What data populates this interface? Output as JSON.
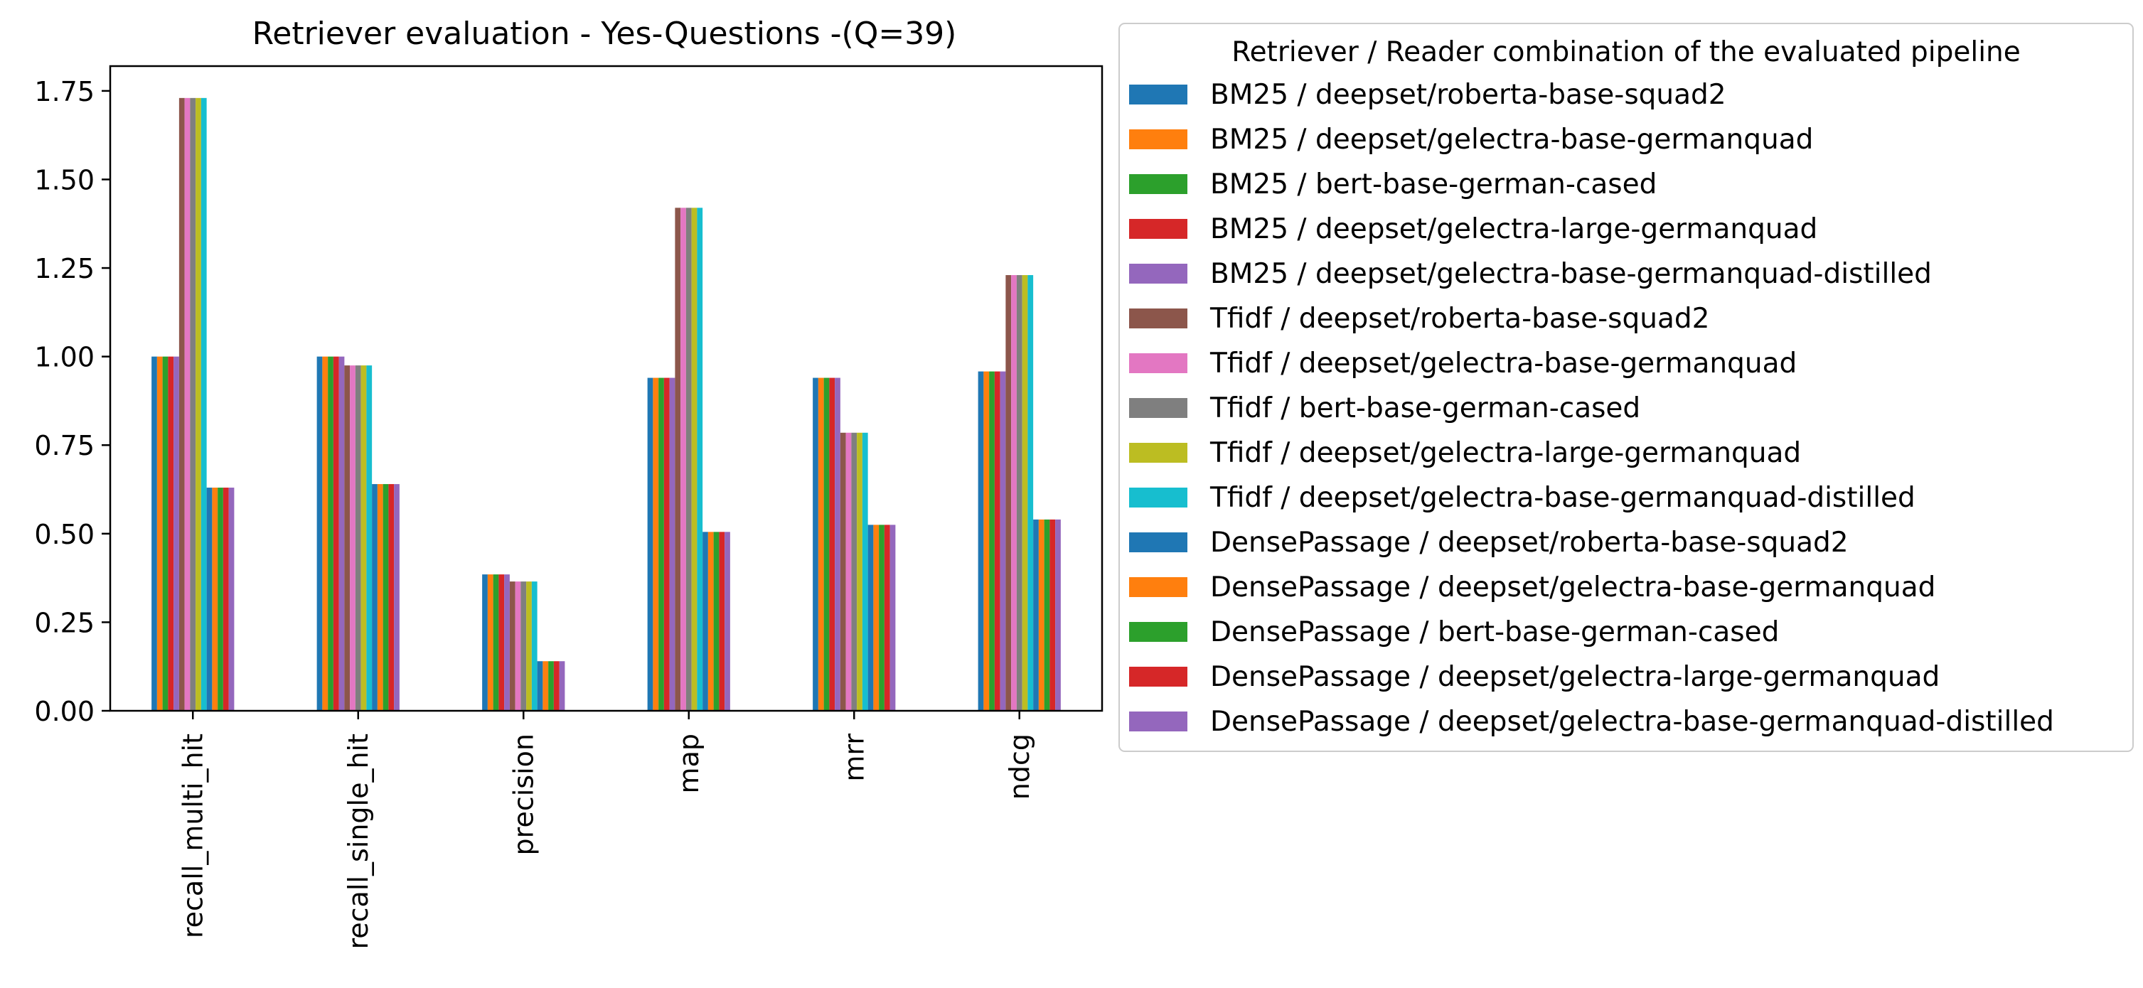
{
  "chart_data": {
    "type": "bar",
    "title": "Retriever evaluation - Yes-Questions -(Q=39)",
    "xlabel": "",
    "ylabel": "",
    "ylim": [
      0,
      1.82
    ],
    "yticks": [
      "0.00",
      "0.25",
      "0.50",
      "0.75",
      "1.00",
      "1.25",
      "1.50",
      "1.75"
    ],
    "ytick_values": [
      0,
      0.25,
      0.5,
      0.75,
      1.0,
      1.25,
      1.5,
      1.75
    ],
    "categories": [
      "recall_multi_hit",
      "recall_single_hit",
      "precision",
      "map",
      "mrr",
      "ndcg"
    ],
    "legend": {
      "title": "Retriever / Reader combination of the evaluated pipeline",
      "placement": "outside-right"
    },
    "series": [
      {
        "name": "BM25 / deepset/roberta-base-squad2",
        "color": "#1f77b4",
        "values": [
          1.0,
          1.0,
          0.385,
          0.94,
          0.94,
          0.958
        ]
      },
      {
        "name": "BM25 / deepset/gelectra-base-germanquad",
        "color": "#ff7f0e",
        "values": [
          1.0,
          1.0,
          0.385,
          0.94,
          0.94,
          0.958
        ]
      },
      {
        "name": "BM25 / bert-base-german-cased",
        "color": "#2ca02c",
        "values": [
          1.0,
          1.0,
          0.385,
          0.94,
          0.94,
          0.958
        ]
      },
      {
        "name": "BM25 / deepset/gelectra-large-germanquad",
        "color": "#d62728",
        "values": [
          1.0,
          1.0,
          0.385,
          0.94,
          0.94,
          0.958
        ]
      },
      {
        "name": "BM25 / deepset/gelectra-base-germanquad-distilled",
        "color": "#9467bd",
        "values": [
          1.0,
          1.0,
          0.385,
          0.94,
          0.94,
          0.958
        ]
      },
      {
        "name": "Tfidf / deepset/roberta-base-squad2",
        "color": "#8c564b",
        "values": [
          1.73,
          0.975,
          0.365,
          1.42,
          0.785,
          1.23
        ]
      },
      {
        "name": "Tfidf / deepset/gelectra-base-germanquad",
        "color": "#e377c2",
        "values": [
          1.73,
          0.975,
          0.365,
          1.42,
          0.785,
          1.23
        ]
      },
      {
        "name": "Tfidf / bert-base-german-cased",
        "color": "#7f7f7f",
        "values": [
          1.73,
          0.975,
          0.365,
          1.42,
          0.785,
          1.23
        ]
      },
      {
        "name": "Tfidf / deepset/gelectra-large-germanquad",
        "color": "#bcbd22",
        "values": [
          1.73,
          0.975,
          0.365,
          1.42,
          0.785,
          1.23
        ]
      },
      {
        "name": "Tfidf / deepset/gelectra-base-germanquad-distilled",
        "color": "#17becf",
        "values": [
          1.73,
          0.975,
          0.365,
          1.42,
          0.785,
          1.23
        ]
      },
      {
        "name": "DensePassage / deepset/roberta-base-squad2",
        "color": "#1f77b4",
        "values": [
          0.63,
          0.64,
          0.14,
          0.505,
          0.525,
          0.54
        ]
      },
      {
        "name": "DensePassage / deepset/gelectra-base-germanquad",
        "color": "#ff7f0e",
        "values": [
          0.63,
          0.64,
          0.14,
          0.505,
          0.525,
          0.54
        ]
      },
      {
        "name": "DensePassage / bert-base-german-cased",
        "color": "#2ca02c",
        "values": [
          0.63,
          0.64,
          0.14,
          0.505,
          0.525,
          0.54
        ]
      },
      {
        "name": "DensePassage / deepset/gelectra-large-germanquad",
        "color": "#d62728",
        "values": [
          0.63,
          0.64,
          0.14,
          0.505,
          0.525,
          0.54
        ]
      },
      {
        "name": "DensePassage / deepset/gelectra-base-germanquad-distilled",
        "color": "#9467bd",
        "values": [
          0.63,
          0.64,
          0.14,
          0.505,
          0.525,
          0.54
        ]
      }
    ]
  }
}
